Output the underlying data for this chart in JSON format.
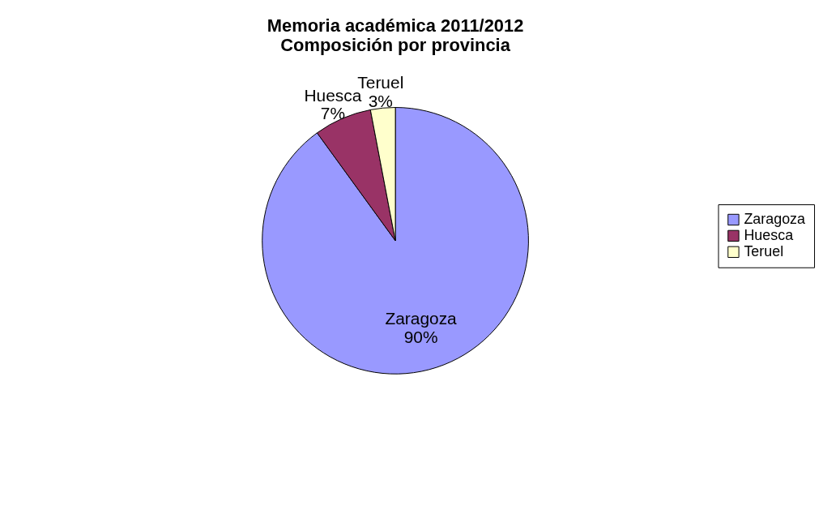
{
  "chart_data": {
    "type": "pie",
    "title": [
      "Memoria académica 2011/2012",
      "Composición por provincia"
    ],
    "categories": [
      "Zaragoza",
      "Huesca",
      "Teruel"
    ],
    "values": [
      90,
      7,
      3
    ],
    "colors": [
      "#9999ff",
      "#993366",
      "#ffffcc"
    ],
    "value_labels": [
      "90%",
      "7%",
      "3%"
    ],
    "legend": "right"
  }
}
